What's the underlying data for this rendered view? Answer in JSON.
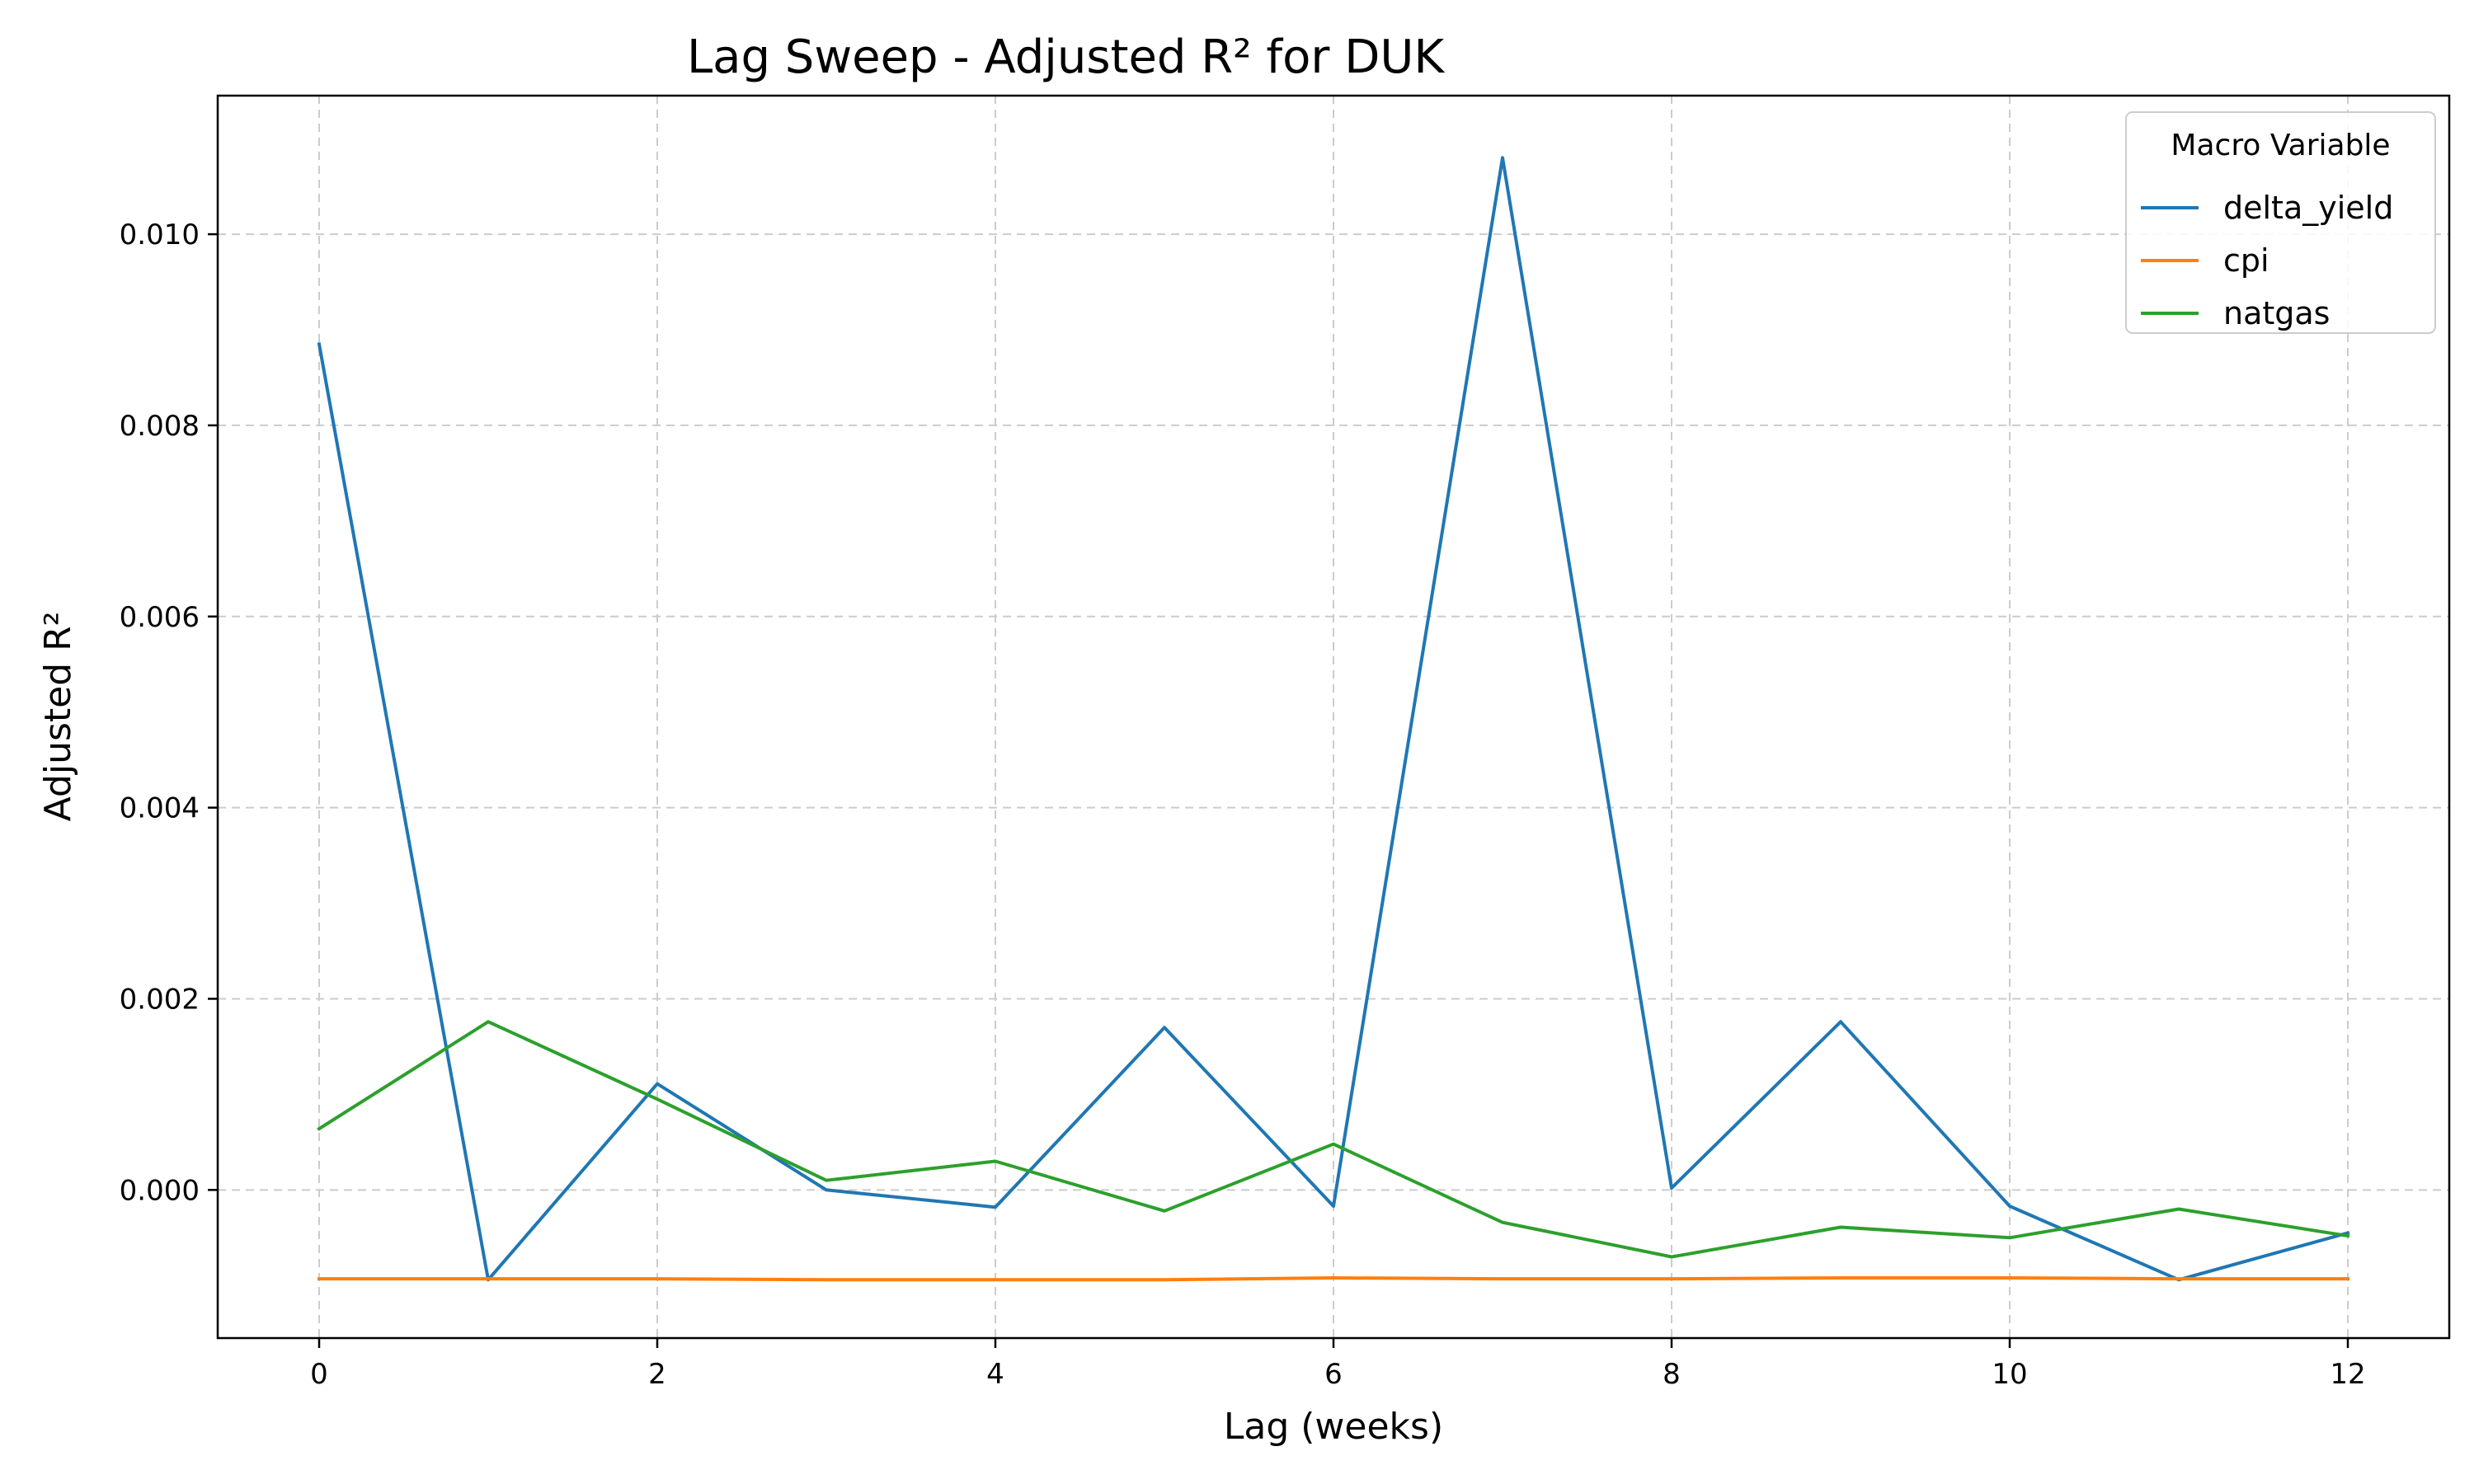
{
  "chart_data": {
    "type": "line",
    "title": "Lag Sweep - Adjusted R² for DUK",
    "xlabel": "Lag (weeks)",
    "ylabel": "Adjusted R²",
    "x": [
      0,
      1,
      2,
      3,
      4,
      5,
      6,
      7,
      8,
      9,
      10,
      11,
      12
    ],
    "xlim": [
      -0.6,
      12.6
    ],
    "ylim": [
      -0.00155,
      0.01145
    ],
    "xticks": [
      0,
      2,
      4,
      6,
      8,
      10,
      12
    ],
    "xtick_labels": [
      "0",
      "2",
      "4",
      "6",
      "8",
      "10",
      "12"
    ],
    "yticks": [
      0.0,
      0.002,
      0.004,
      0.006,
      0.008,
      0.01
    ],
    "ytick_labels": [
      "0.000",
      "0.002",
      "0.004",
      "0.006",
      "0.008",
      "0.010"
    ],
    "grid": true,
    "legend": {
      "title": "Macro Variable",
      "placement": "top-right"
    },
    "series": [
      {
        "name": "delta_yield",
        "color": "#1f77b4",
        "values": [
          0.00885,
          -0.00094,
          0.00111,
          0.0,
          -0.00018,
          0.0017,
          -0.00017,
          0.0108,
          2e-05,
          0.00176,
          -0.00017,
          -0.00094,
          -0.00045
        ]
      },
      {
        "name": "cpi",
        "color": "#ff7f0e",
        "values": [
          -0.00093,
          -0.00093,
          -0.00093,
          -0.00094,
          -0.00094,
          -0.00094,
          -0.00092,
          -0.00093,
          -0.00093,
          -0.00092,
          -0.00092,
          -0.00093,
          -0.00093
        ]
      },
      {
        "name": "natgas",
        "color": "#2ca02c",
        "values": [
          0.00064,
          0.00176,
          0.00095,
          0.0001,
          0.0003,
          -0.00022,
          0.00048,
          -0.00034,
          -0.0007,
          -0.00039,
          -0.0005,
          -0.0002,
          -0.00048
        ]
      }
    ]
  }
}
